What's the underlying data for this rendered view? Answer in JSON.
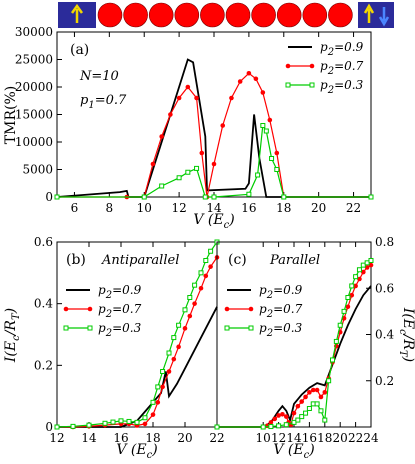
{
  "schematic": {
    "bead_count": 10,
    "left_box_color": "#2b2b9a",
    "right_box_color": "#2b2b9a",
    "bead_color": "#ff0000",
    "left_arrow_color": "#f2d600",
    "right_arrow_colors": [
      "#f2d600",
      "#4b86ff"
    ]
  },
  "chart_data": [
    {
      "id": "a",
      "type": "line",
      "panel_label": "(a)",
      "xlabel": "V (E_c)",
      "xlabel_main": "V (E",
      "xlabel_sub": "c",
      "xlabel_close": ")",
      "ylabel": "TMR(%)",
      "xlim": [
        5,
        23
      ],
      "ylim": [
        0,
        30000
      ],
      "xticks": [
        6,
        8,
        10,
        12,
        14,
        16,
        18,
        20,
        22
      ],
      "yticks": [
        0,
        5000,
        10000,
        15000,
        20000,
        25000,
        30000
      ],
      "annotations": [
        {
          "text_main": "N=10",
          "text_sub": ""
        },
        {
          "text_main": "p",
          "text_sub": "1",
          "text_tail": "=0.7"
        }
      ],
      "legend_position": "top-right",
      "series": [
        {
          "name": "p2=0.9",
          "name_main": "p",
          "name_sub": "2",
          "name_tail": "=0.9",
          "color": "#000000",
          "marker": "none",
          "x": [
            5,
            8.6,
            9.0,
            9.1,
            10.0,
            12.0,
            12.5,
            12.8,
            13.5,
            13.6,
            15.8,
            16.0,
            16.3,
            16.6,
            17.0,
            23
          ],
          "y": [
            0,
            900,
            1100,
            0,
            0,
            20000,
            25000,
            24500,
            11000,
            1200,
            1500,
            2500,
            15000,
            7000,
            0,
            0
          ]
        },
        {
          "name": "p2=0.7",
          "name_main": "p",
          "name_sub": "2",
          "name_tail": "=0.7",
          "color": "#ff0000",
          "marker": "circle",
          "x": [
            5,
            9.0,
            10.0,
            10.5,
            11.0,
            11.5,
            12.0,
            12.5,
            13.0,
            13.3,
            13.6,
            14.0,
            14.5,
            15.0,
            15.5,
            16.0,
            16.4,
            16.8,
            17.2,
            17.6,
            18.0,
            23
          ],
          "y": [
            0,
            0,
            0,
            6000,
            11000,
            15000,
            18000,
            20000,
            18000,
            8000,
            0,
            6000,
            13000,
            18000,
            21000,
            22500,
            21500,
            19000,
            14000,
            8000,
            0,
            0
          ]
        },
        {
          "name": "p2=0.3",
          "name_main": "p",
          "name_sub": "2",
          "name_tail": "=0.3",
          "color": "#00cc00",
          "marker": "square",
          "x": [
            5,
            10.0,
            11.0,
            12.0,
            12.5,
            13.0,
            13.5,
            14.0,
            16.0,
            16.5,
            16.8,
            17.0,
            17.3,
            17.6,
            18.0,
            23
          ],
          "y": [
            0,
            0,
            2000,
            3500,
            4500,
            5200,
            0,
            0,
            500,
            4000,
            13000,
            12000,
            7000,
            5000,
            0,
            0
          ]
        }
      ]
    },
    {
      "id": "b",
      "type": "line",
      "panel_label": "(b)",
      "title": "Antiparallel",
      "xlabel": "V (E_c)",
      "xlabel_main": "V (E",
      "xlabel_sub": "c",
      "xlabel_close": ")",
      "ylabel": "I(E_c/R_T)",
      "xlim": [
        12,
        22
      ],
      "ylim": [
        0,
        0.6
      ],
      "xticks": [
        12,
        14,
        16,
        18,
        20,
        22
      ],
      "yticks": [
        0,
        0.2,
        0.4,
        0.6
      ],
      "legend_position": "center-left",
      "series": [
        {
          "name": "p2=0.9",
          "name_main": "p",
          "name_sub": "2",
          "name_tail": "=0.9",
          "color": "#000000",
          "marker": "none",
          "x": [
            12,
            16.0,
            17.0,
            17.5,
            18.0,
            18.5,
            18.8,
            19.0,
            19.5,
            20.0,
            21.0,
            22.0
          ],
          "y": [
            0,
            0,
            0.02,
            0.05,
            0.08,
            0.11,
            0.18,
            0.1,
            0.14,
            0.19,
            0.29,
            0.39
          ]
        },
        {
          "name": "p2=0.7",
          "name_main": "p",
          "name_sub": "2",
          "name_tail": "=0.7",
          "color": "#ff0000",
          "marker": "circle",
          "x": [
            12,
            13,
            14,
            15,
            16.0,
            16.5,
            17.0,
            17.5,
            18.0,
            18.3,
            18.6,
            19.0,
            19.3,
            19.6,
            20.0,
            20.3,
            20.6,
            21.0,
            21.3,
            21.6,
            22.0
          ],
          "y": [
            0,
            0,
            0.002,
            0.006,
            0.01,
            0.01,
            0.005,
            0.01,
            0.04,
            0.08,
            0.13,
            0.18,
            0.22,
            0.26,
            0.32,
            0.36,
            0.4,
            0.45,
            0.49,
            0.52,
            0.55
          ]
        },
        {
          "name": "p2=0.3",
          "name_main": "p",
          "name_sub": "2",
          "name_tail": "=0.3",
          "color": "#00cc00",
          "marker": "square",
          "x": [
            12,
            13,
            14,
            15,
            15.5,
            16.0,
            16.5,
            17.0,
            17.5,
            18.0,
            18.3,
            18.6,
            19.0,
            19.3,
            19.6,
            20.0,
            20.3,
            20.6,
            21.0,
            21.3,
            21.6,
            22.0
          ],
          "y": [
            0,
            0.002,
            0.006,
            0.012,
            0.016,
            0.02,
            0.018,
            0.015,
            0.03,
            0.08,
            0.13,
            0.18,
            0.24,
            0.29,
            0.33,
            0.38,
            0.42,
            0.46,
            0.5,
            0.54,
            0.57,
            0.6
          ]
        }
      ]
    },
    {
      "id": "c",
      "type": "line",
      "panel_label": "(c)",
      "title": "Parallel",
      "xlabel": "V (E_c)",
      "xlabel_main": "V (E",
      "xlabel_sub": "c",
      "xlabel_close": ")",
      "ylabel": "I(E_c/R_T)",
      "xlim": [
        4,
        24
      ],
      "ylim": [
        0,
        0.8
      ],
      "xticks": [
        10,
        12,
        14,
        16,
        18,
        20,
        22,
        24
      ],
      "yticks": [
        0.2,
        0.4,
        0.6,
        0.8
      ],
      "legend_position": "center-left",
      "series": [
        {
          "name": "p2=0.9",
          "name_main": "p",
          "name_sub": "2",
          "name_tail": "=0.9",
          "color": "#000000",
          "marker": "none",
          "x": [
            4,
            10.0,
            11.0,
            12.0,
            12.5,
            13.0,
            13.5,
            14.0,
            15.0,
            16.0,
            17.0,
            18.0,
            19.0,
            20.0,
            21.0,
            22.0,
            23.0,
            24.0
          ],
          "y": [
            0,
            0,
            0.02,
            0.07,
            0.09,
            0.07,
            0.03,
            0.1,
            0.14,
            0.17,
            0.19,
            0.18,
            0.27,
            0.36,
            0.44,
            0.51,
            0.57,
            0.61
          ]
        },
        {
          "name": "p2=0.7",
          "name_main": "p",
          "name_sub": "2",
          "name_tail": "=0.7",
          "color": "#ff0000",
          "marker": "circle",
          "x": [
            4,
            10.0,
            10.5,
            11.0,
            11.5,
            12.0,
            12.5,
            13.0,
            13.3,
            13.6,
            14.0,
            14.5,
            15.0,
            15.5,
            16.0,
            16.5,
            17.0,
            17.5,
            18.0,
            18.5,
            19.0,
            19.5,
            20.0,
            20.5,
            21.0,
            21.5,
            22.0,
            22.5,
            23.0,
            23.5,
            24.0
          ],
          "y": [
            0,
            0,
            0.005,
            0.02,
            0.035,
            0.05,
            0.055,
            0.045,
            0.02,
            0.01,
            0.06,
            0.09,
            0.11,
            0.13,
            0.15,
            0.16,
            0.16,
            0.13,
            0.15,
            0.21,
            0.28,
            0.35,
            0.41,
            0.47,
            0.52,
            0.57,
            0.61,
            0.64,
            0.67,
            0.69,
            0.7
          ]
        },
        {
          "name": "p2=0.3",
          "name_main": "p",
          "name_sub": "2",
          "name_tail": "=0.3",
          "color": "#00cc00",
          "marker": "square",
          "x": [
            4,
            10.0,
            11.0,
            12.0,
            13.0,
            14.0,
            14.5,
            15.0,
            15.5,
            16.0,
            16.5,
            17.0,
            17.5,
            18.0,
            18.5,
            19.0,
            19.5,
            20.0,
            20.5,
            21.0,
            21.5,
            22.0,
            22.5,
            23.0,
            23.5,
            24.0
          ],
          "y": [
            0,
            0,
            0.002,
            0.005,
            0.01,
            0.02,
            0.03,
            0.045,
            0.06,
            0.08,
            0.1,
            0.1,
            0.07,
            0.03,
            0.2,
            0.29,
            0.37,
            0.44,
            0.5,
            0.56,
            0.61,
            0.65,
            0.68,
            0.7,
            0.71,
            0.72
          ]
        }
      ]
    }
  ]
}
